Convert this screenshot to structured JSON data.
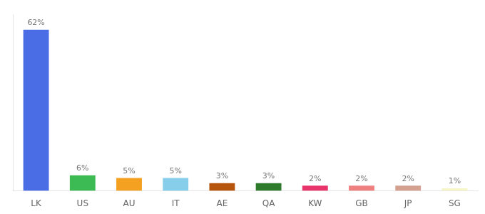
{
  "chart_data": {
    "type": "bar",
    "categories": [
      "LK",
      "US",
      "AU",
      "IT",
      "AE",
      "QA",
      "KW",
      "GB",
      "JP",
      "SG"
    ],
    "values": [
      62,
      6,
      5,
      5,
      3,
      3,
      2,
      2,
      2,
      1
    ],
    "value_labels": [
      "62%",
      "6%",
      "5%",
      "5%",
      "3%",
      "3%",
      "2%",
      "2%",
      "2%",
      "1%"
    ],
    "colors": [
      "#4a6de5",
      "#3cba54",
      "#f4a020",
      "#87ceeb",
      "#b5540a",
      "#2d7a2d",
      "#e8336a",
      "#f08080",
      "#d4a090",
      "#f5f5c8"
    ],
    "ylim": [
      0,
      68
    ],
    "grid": false,
    "data_labels": true,
    "tick_labels": "x"
  }
}
